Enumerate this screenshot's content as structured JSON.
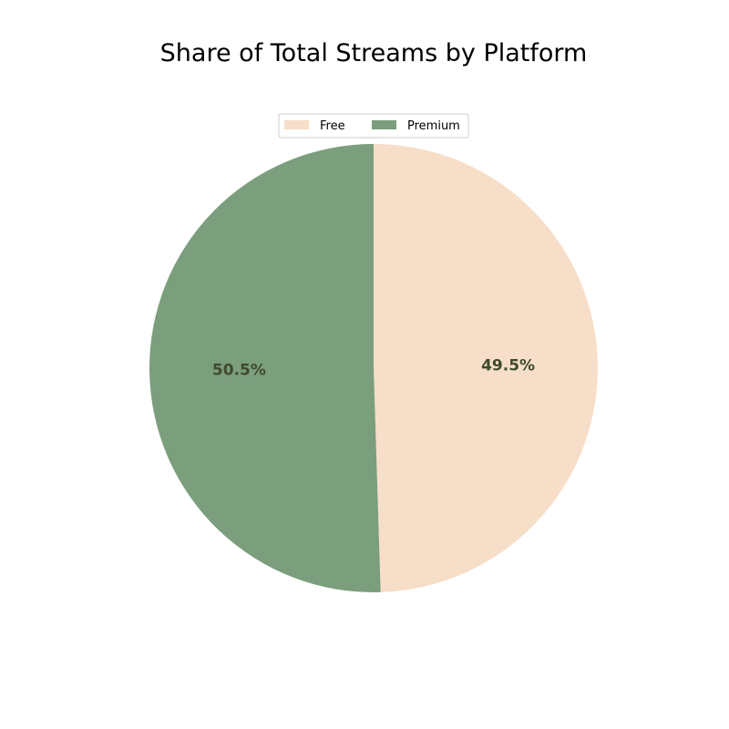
{
  "chart_data": {
    "type": "pie",
    "title": "Share of Total Streams by Platform",
    "categories": [
      "Free",
      "Premium"
    ],
    "values": [
      49.5,
      50.5
    ],
    "labels": [
      "49.5%",
      "50.5%"
    ],
    "colors": [
      "#f7dec8",
      "#7b9e7d"
    ],
    "label_color": "#3d4a2e",
    "start_angle_deg": 90,
    "direction": "clockwise",
    "legend": {
      "placement": "top-center",
      "ncol": 2,
      "entries": [
        "Free",
        "Premium"
      ]
    }
  }
}
